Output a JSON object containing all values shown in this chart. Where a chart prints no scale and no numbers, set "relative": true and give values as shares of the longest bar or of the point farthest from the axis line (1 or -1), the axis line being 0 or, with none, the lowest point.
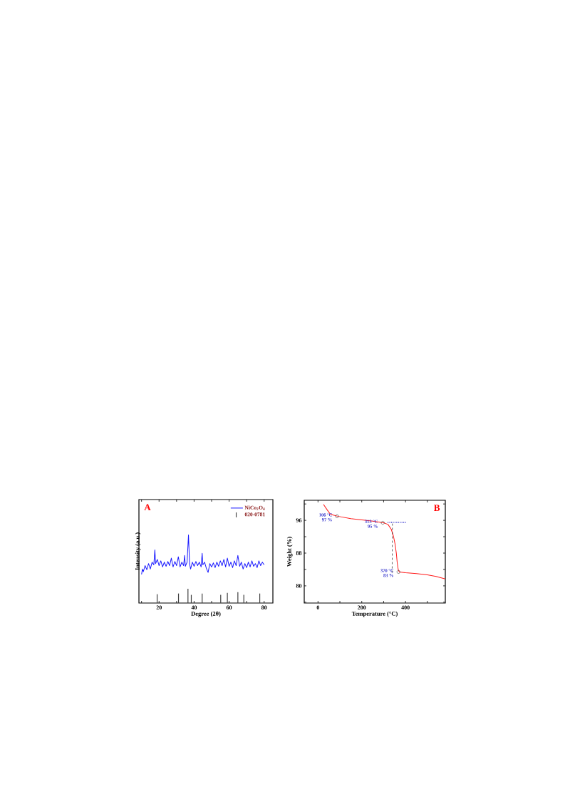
{
  "chart_data": [
    {
      "type": "line",
      "title": "A",
      "xlabel": "Degree (2θ)",
      "ylabel": "Intensity (a.u.)",
      "relative": true,
      "legend": "top right",
      "xlim": [
        8.5,
        85
      ],
      "xticks": [
        {
          "value": 10,
          "label": null
        },
        20,
        {
          "value": 30,
          "label": null
        },
        40,
        {
          "value": 50,
          "label": null
        },
        60,
        {
          "value": 70,
          "label": null
        },
        80
      ],
      "series": [
        {
          "name": "NiCo$_{2}$O$_{4}$",
          "color": "#1a1aff",
          "x": [
            10,
            10.5,
            11,
            12,
            13,
            14,
            15,
            16,
            17,
            17.6,
            18,
            19,
            20,
            21,
            22,
            23,
            24,
            25,
            26,
            27,
            28,
            29,
            30,
            31,
            32,
            33,
            34,
            34.6,
            35,
            36,
            36.8,
            37.4,
            38,
            39,
            40,
            41,
            42,
            43,
            44,
            44.6,
            45,
            46,
            47,
            48,
            49,
            50,
            51,
            52,
            53,
            54,
            55,
            56,
            57,
            58,
            59,
            60,
            61,
            62,
            63,
            64,
            65,
            66,
            67,
            68,
            69,
            70,
            71,
            72,
            73,
            74,
            75,
            76,
            77,
            78,
            79,
            80
          ],
          "values": [
            0.42,
            0.5,
            0.46,
            0.55,
            0.49,
            0.58,
            0.5,
            0.6,
            0.56,
            0.78,
            0.58,
            0.64,
            0.55,
            0.62,
            0.53,
            0.6,
            0.54,
            0.61,
            0.55,
            0.66,
            0.53,
            0.61,
            0.55,
            0.68,
            0.53,
            0.6,
            0.55,
            0.7,
            0.54,
            0.6,
            1.0,
            0.58,
            0.5,
            0.6,
            0.54,
            0.61,
            0.55,
            0.6,
            0.53,
            0.73,
            0.56,
            0.6,
            0.51,
            0.45,
            0.58,
            0.53,
            0.59,
            0.52,
            0.6,
            0.54,
            0.62,
            0.55,
            0.64,
            0.53,
            0.66,
            0.54,
            0.6,
            0.52,
            0.62,
            0.55,
            0.7,
            0.54,
            0.6,
            0.5,
            0.58,
            0.52,
            0.6,
            0.53,
            0.62,
            0.54,
            0.58,
            0.52,
            0.62,
            0.55,
            0.6,
            0.56
          ]
        },
        {
          "name": "020-0781",
          "type": "bar",
          "color": "#404040",
          "x": [
            18.9,
            31.1,
            36.5,
            38.4,
            44.6,
            55.2,
            59.0,
            65.0,
            68.4,
            77.5
          ],
          "values": [
            0.13,
            0.14,
            0.21,
            0.12,
            0.14,
            0.12,
            0.15,
            0.16,
            0.12,
            0.14
          ]
        }
      ]
    },
    {
      "type": "line",
      "title": "B",
      "xlabel": "Temperature (°C)",
      "ylabel": "Weight (%)",
      "xlim": [
        -63,
        582
      ],
      "ylim": [
        75.8,
        100.9
      ],
      "xticks": [
        0,
        {
          "value": 100,
          "label": null
        },
        200,
        {
          "value": 300,
          "label": null
        },
        400,
        {
          "value": 500,
          "label": null
        }
      ],
      "yticks": [
        {
          "value": 76,
          "label": null
        },
        80,
        {
          "value": 84,
          "label": null
        },
        88,
        {
          "value": 92,
          "label": null
        },
        96,
        {
          "value": 100,
          "label": null
        }
      ],
      "series": [
        {
          "color": "#ff1a1a",
          "x": [
            25,
            40,
            55,
            70,
            90,
            150,
            200,
            250,
            300,
            320,
            335,
            345,
            352,
            358,
            362,
            367,
            372,
            400,
            450,
            500,
            540,
            582
          ],
          "values": [
            99.9,
            98.7,
            97.6,
            97.3,
            97.0,
            96.4,
            96.1,
            95.8,
            95.4,
            95.0,
            93.8,
            92.1,
            90.3,
            88.0,
            85.7,
            83.9,
            83.4,
            83.2,
            83.0,
            82.7,
            82.3,
            81.7
          ]
        },
        {
          "type": "scatter",
          "marker": "circle",
          "color": "#404040",
          "x": [
            87,
            296,
            368
          ],
          "values": [
            97.0,
            95.4,
            83.4
          ]
        },
        {
          "line_style": "dashed",
          "color": "#202020",
          "x": [
            339,
            340
          ],
          "values": [
            83.2,
            95.2
          ]
        },
        {
          "line_style": "dotted",
          "color": "#3333cc",
          "x": [
            320,
            400
          ],
          "values": [
            95.5,
            95.5
          ]
        }
      ],
      "annotations": [
        {
          "text": "106 °C",
          "x": 87,
          "y": 97.0
        },
        {
          "text": "97 %",
          "x": 87,
          "y": 97.0
        },
        {
          "text": "313 °C",
          "x": 296,
          "y": 95.4
        },
        {
          "text": "95 %",
          "x": 296,
          "y": 95.4
        },
        {
          "text": "370 °C",
          "x": 368,
          "y": 83.4
        },
        {
          "text": "83 %",
          "x": 368,
          "y": 83.4
        }
      ]
    }
  ]
}
